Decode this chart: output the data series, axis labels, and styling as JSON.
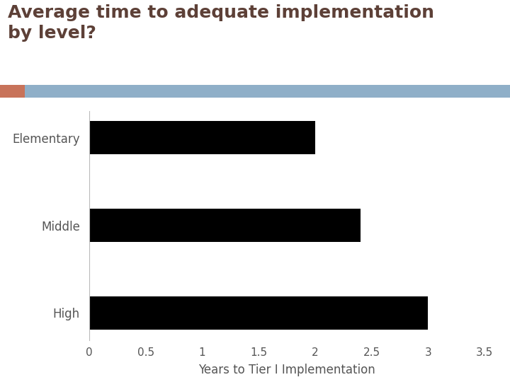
{
  "title_line1": "Average time to adequate implementation",
  "title_line2": "by level?",
  "categories": [
    "Elementary",
    "Middle",
    "High"
  ],
  "values": [
    2.0,
    2.4,
    3.0
  ],
  "bar_color": "#000000",
  "xlabel": "Years to Tier I Implementation",
  "xlim": [
    0,
    3.5
  ],
  "xticks": [
    0,
    0.5,
    1,
    1.5,
    2,
    2.5,
    3,
    3.5
  ],
  "xtick_labels": [
    "0",
    "0.5",
    "1",
    "1.5",
    "2",
    "2.5",
    "3",
    "3.5"
  ],
  "title_color": "#5d4037",
  "tick_label_color": "#555555",
  "xlabel_color": "#555555",
  "background_color": "#ffffff",
  "stripe_color": "#8fafc8",
  "stripe_accent_color": "#c8735a",
  "title_fontsize": 18,
  "axis_label_fontsize": 12,
  "tick_fontsize": 11,
  "category_fontsize": 12,
  "bar_height": 0.38
}
